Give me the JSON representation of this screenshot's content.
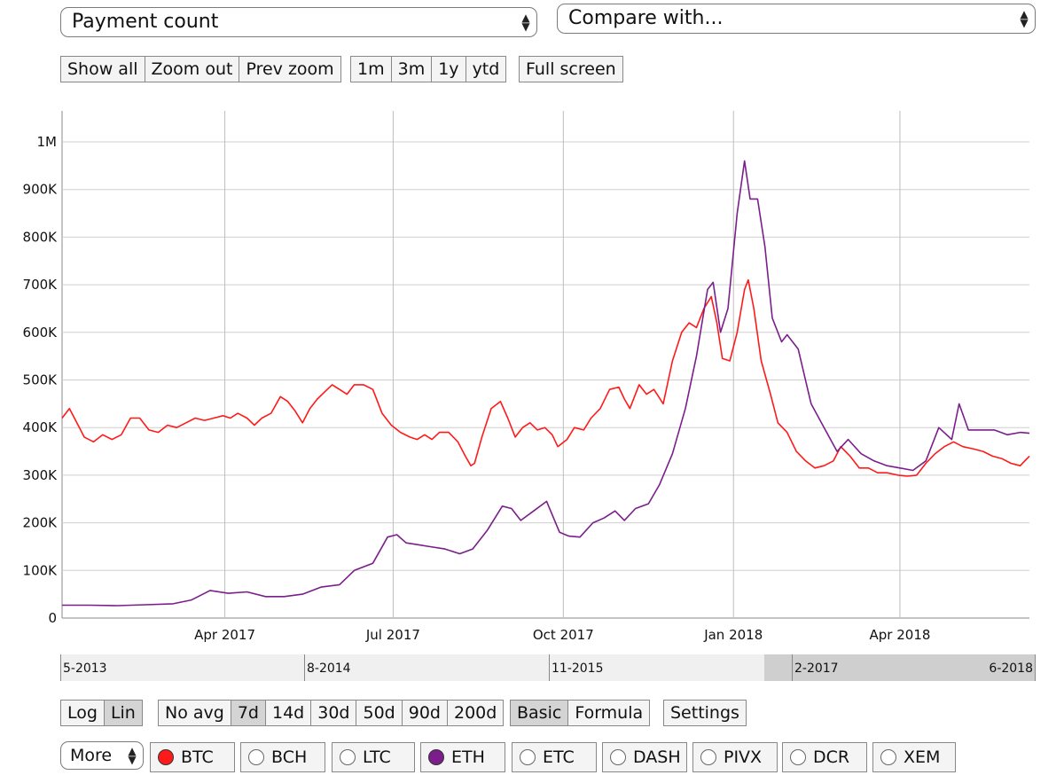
{
  "controls": {
    "metric_select": {
      "label": "Payment count"
    },
    "compare_select": {
      "label": "Compare with..."
    },
    "zoom_buttons": [
      "Show all",
      "Zoom out",
      "Prev zoom"
    ],
    "range_buttons": [
      "1m",
      "3m",
      "1y",
      "ytd"
    ],
    "fullscreen_label": "Full screen",
    "scale_buttons": [
      {
        "label": "Log",
        "active": false
      },
      {
        "label": "Lin",
        "active": true
      }
    ],
    "avg_buttons": [
      {
        "label": "No avg",
        "active": false
      },
      {
        "label": "7d",
        "active": true
      },
      {
        "label": "14d",
        "active": false
      },
      {
        "label": "30d",
        "active": false
      },
      {
        "label": "50d",
        "active": false
      },
      {
        "label": "90d",
        "active": false
      },
      {
        "label": "200d",
        "active": false
      }
    ],
    "mode_buttons": [
      {
        "label": "Basic",
        "active": true
      },
      {
        "label": "Formula",
        "active": false
      }
    ],
    "settings_label": "Settings",
    "more_select": {
      "label": "More"
    }
  },
  "coins": [
    {
      "label": "BTC",
      "selected": true,
      "color": "#ff1a1a"
    },
    {
      "label": "BCH",
      "selected": false,
      "color": ""
    },
    {
      "label": "LTC",
      "selected": false,
      "color": ""
    },
    {
      "label": "ETH",
      "selected": true,
      "color": "#7b1e8c"
    },
    {
      "label": "ETC",
      "selected": false,
      "color": ""
    },
    {
      "label": "DASH",
      "selected": false,
      "color": ""
    },
    {
      "label": "PIVX",
      "selected": false,
      "color": ""
    },
    {
      "label": "DCR",
      "selected": false,
      "color": ""
    },
    {
      "label": "XEM",
      "selected": false,
      "color": ""
    }
  ],
  "navigator": {
    "labels": [
      "5-2013",
      "8-2014",
      "11-2015",
      "2-2017",
      "6-2018"
    ],
    "selected_range": [
      "2-2017",
      "6-2018"
    ]
  },
  "chart_data": {
    "type": "line",
    "title": "",
    "xlabel": "",
    "ylabel": "",
    "x_range": [
      "2017-01-03",
      "2018-06-10"
    ],
    "ylim": [
      0,
      1000000
    ],
    "yticks": [
      0,
      100000,
      200000,
      300000,
      400000,
      500000,
      600000,
      700000,
      800000,
      900000,
      1000000
    ],
    "ytick_labels": [
      "0",
      "100K",
      "200K",
      "300K",
      "400K",
      "500K",
      "600K",
      "700K",
      "800K",
      "900K",
      "1M"
    ],
    "xticks": [
      "2017-04-01",
      "2017-07-01",
      "2017-10-01",
      "2018-01-01",
      "2018-04-01"
    ],
    "xtick_labels": [
      "Apr 2017",
      "Jul 2017",
      "Oct 2017",
      "Jan 2018",
      "Apr 2018"
    ],
    "grid": true,
    "legend": "none",
    "series": [
      {
        "name": "BTC",
        "color": "#ff1a1a",
        "points": [
          [
            "2017-01-03",
            420000
          ],
          [
            "2017-01-07",
            440000
          ],
          [
            "2017-01-11",
            410000
          ],
          [
            "2017-01-15",
            380000
          ],
          [
            "2017-01-20",
            370000
          ],
          [
            "2017-01-25",
            385000
          ],
          [
            "2017-01-30",
            375000
          ],
          [
            "2017-02-04",
            385000
          ],
          [
            "2017-02-09",
            420000
          ],
          [
            "2017-02-14",
            420000
          ],
          [
            "2017-02-19",
            395000
          ],
          [
            "2017-02-24",
            390000
          ],
          [
            "2017-03-01",
            405000
          ],
          [
            "2017-03-06",
            400000
          ],
          [
            "2017-03-11",
            410000
          ],
          [
            "2017-03-16",
            420000
          ],
          [
            "2017-03-21",
            415000
          ],
          [
            "2017-03-26",
            420000
          ],
          [
            "2017-03-31",
            425000
          ],
          [
            "2017-04-04",
            420000
          ],
          [
            "2017-04-08",
            430000
          ],
          [
            "2017-04-13",
            420000
          ],
          [
            "2017-04-17",
            405000
          ],
          [
            "2017-04-21",
            420000
          ],
          [
            "2017-04-26",
            430000
          ],
          [
            "2017-05-01",
            465000
          ],
          [
            "2017-05-05",
            455000
          ],
          [
            "2017-05-09",
            435000
          ],
          [
            "2017-05-13",
            410000
          ],
          [
            "2017-05-17",
            440000
          ],
          [
            "2017-05-21",
            460000
          ],
          [
            "2017-05-25",
            475000
          ],
          [
            "2017-05-29",
            490000
          ],
          [
            "2017-06-02",
            480000
          ],
          [
            "2017-06-06",
            470000
          ],
          [
            "2017-06-10",
            490000
          ],
          [
            "2017-06-15",
            490000
          ],
          [
            "2017-06-20",
            480000
          ],
          [
            "2017-06-25",
            430000
          ],
          [
            "2017-06-30",
            405000
          ],
          [
            "2017-07-05",
            390000
          ],
          [
            "2017-07-10",
            380000
          ],
          [
            "2017-07-14",
            375000
          ],
          [
            "2017-07-18",
            385000
          ],
          [
            "2017-07-22",
            375000
          ],
          [
            "2017-07-26",
            390000
          ],
          [
            "2017-07-31",
            390000
          ],
          [
            "2017-08-05",
            370000
          ],
          [
            "2017-08-09",
            340000
          ],
          [
            "2017-08-12",
            320000
          ],
          [
            "2017-08-14",
            325000
          ],
          [
            "2017-08-18",
            380000
          ],
          [
            "2017-08-23",
            440000
          ],
          [
            "2017-08-28",
            455000
          ],
          [
            "2017-09-01",
            420000
          ],
          [
            "2017-09-05",
            380000
          ],
          [
            "2017-09-09",
            400000
          ],
          [
            "2017-09-13",
            410000
          ],
          [
            "2017-09-17",
            395000
          ],
          [
            "2017-09-21",
            400000
          ],
          [
            "2017-09-25",
            385000
          ],
          [
            "2017-09-28",
            360000
          ],
          [
            "2017-10-03",
            375000
          ],
          [
            "2017-10-07",
            400000
          ],
          [
            "2017-10-12",
            395000
          ],
          [
            "2017-10-16",
            420000
          ],
          [
            "2017-10-21",
            440000
          ],
          [
            "2017-10-26",
            480000
          ],
          [
            "2017-10-31",
            485000
          ],
          [
            "2017-11-03",
            460000
          ],
          [
            "2017-11-06",
            440000
          ],
          [
            "2017-11-11",
            490000
          ],
          [
            "2017-11-15",
            470000
          ],
          [
            "2017-11-19",
            480000
          ],
          [
            "2017-11-24",
            450000
          ],
          [
            "2017-11-29",
            540000
          ],
          [
            "2017-12-04",
            600000
          ],
          [
            "2017-12-08",
            620000
          ],
          [
            "2017-12-12",
            610000
          ],
          [
            "2017-12-16",
            650000
          ],
          [
            "2017-12-20",
            675000
          ],
          [
            "2017-12-23",
            620000
          ],
          [
            "2017-12-26",
            545000
          ],
          [
            "2017-12-30",
            540000
          ],
          [
            "2018-01-03",
            600000
          ],
          [
            "2018-01-07",
            690000
          ],
          [
            "2018-01-09",
            710000
          ],
          [
            "2018-01-12",
            650000
          ],
          [
            "2018-01-16",
            540000
          ],
          [
            "2018-01-21",
            470000
          ],
          [
            "2018-01-25",
            410000
          ],
          [
            "2018-01-30",
            390000
          ],
          [
            "2018-02-04",
            350000
          ],
          [
            "2018-02-09",
            330000
          ],
          [
            "2018-02-14",
            315000
          ],
          [
            "2018-02-19",
            320000
          ],
          [
            "2018-02-24",
            330000
          ],
          [
            "2018-02-28",
            360000
          ],
          [
            "2018-03-05",
            340000
          ],
          [
            "2018-03-10",
            315000
          ],
          [
            "2018-03-15",
            315000
          ],
          [
            "2018-03-20",
            305000
          ],
          [
            "2018-03-25",
            305000
          ],
          [
            "2018-03-31",
            300000
          ],
          [
            "2018-04-05",
            298000
          ],
          [
            "2018-04-10",
            300000
          ],
          [
            "2018-04-15",
            325000
          ],
          [
            "2018-04-20",
            345000
          ],
          [
            "2018-04-25",
            360000
          ],
          [
            "2018-04-30",
            370000
          ],
          [
            "2018-05-05",
            360000
          ],
          [
            "2018-05-11",
            355000
          ],
          [
            "2018-05-16",
            350000
          ],
          [
            "2018-05-21",
            340000
          ],
          [
            "2018-05-26",
            335000
          ],
          [
            "2018-05-31",
            325000
          ],
          [
            "2018-06-05",
            320000
          ],
          [
            "2018-06-10",
            340000
          ]
        ]
      },
      {
        "name": "ETH",
        "color": "#7b1e8c",
        "points": [
          [
            "2017-01-03",
            27000
          ],
          [
            "2017-01-18",
            27000
          ],
          [
            "2017-02-02",
            26000
          ],
          [
            "2017-02-17",
            28000
          ],
          [
            "2017-03-04",
            30000
          ],
          [
            "2017-03-14",
            38000
          ],
          [
            "2017-03-24",
            58000
          ],
          [
            "2017-04-03",
            52000
          ],
          [
            "2017-04-13",
            55000
          ],
          [
            "2017-04-23",
            45000
          ],
          [
            "2017-05-03",
            45000
          ],
          [
            "2017-05-13",
            50000
          ],
          [
            "2017-05-23",
            65000
          ],
          [
            "2017-06-02",
            70000
          ],
          [
            "2017-06-10",
            100000
          ],
          [
            "2017-06-20",
            115000
          ],
          [
            "2017-06-28",
            170000
          ],
          [
            "2017-07-03",
            175000
          ],
          [
            "2017-07-08",
            158000
          ],
          [
            "2017-07-13",
            155000
          ],
          [
            "2017-07-21",
            150000
          ],
          [
            "2017-07-29",
            145000
          ],
          [
            "2017-08-06",
            135000
          ],
          [
            "2017-08-13",
            145000
          ],
          [
            "2017-08-21",
            185000
          ],
          [
            "2017-08-29",
            235000
          ],
          [
            "2017-09-03",
            230000
          ],
          [
            "2017-09-08",
            205000
          ],
          [
            "2017-09-15",
            225000
          ],
          [
            "2017-09-22",
            245000
          ],
          [
            "2017-09-29",
            180000
          ],
          [
            "2017-10-04",
            172000
          ],
          [
            "2017-10-10",
            170000
          ],
          [
            "2017-10-17",
            200000
          ],
          [
            "2017-10-23",
            210000
          ],
          [
            "2017-10-29",
            225000
          ],
          [
            "2017-11-03",
            205000
          ],
          [
            "2017-11-09",
            230000
          ],
          [
            "2017-11-16",
            240000
          ],
          [
            "2017-11-22",
            280000
          ],
          [
            "2017-11-29",
            345000
          ],
          [
            "2017-12-06",
            440000
          ],
          [
            "2017-12-12",
            550000
          ],
          [
            "2017-12-18",
            690000
          ],
          [
            "2017-12-21",
            705000
          ],
          [
            "2017-12-25",
            600000
          ],
          [
            "2017-12-29",
            650000
          ],
          [
            "2018-01-03",
            850000
          ],
          [
            "2018-01-07",
            960000
          ],
          [
            "2018-01-10",
            880000
          ],
          [
            "2018-01-14",
            880000
          ],
          [
            "2018-01-18",
            780000
          ],
          [
            "2018-01-22",
            630000
          ],
          [
            "2018-01-27",
            580000
          ],
          [
            "2018-01-30",
            595000
          ],
          [
            "2018-02-05",
            565000
          ],
          [
            "2018-02-12",
            450000
          ],
          [
            "2018-02-19",
            400000
          ],
          [
            "2018-02-26",
            350000
          ],
          [
            "2018-03-04",
            375000
          ],
          [
            "2018-03-11",
            345000
          ],
          [
            "2018-03-18",
            330000
          ],
          [
            "2018-03-25",
            320000
          ],
          [
            "2018-04-01",
            315000
          ],
          [
            "2018-04-08",
            310000
          ],
          [
            "2018-04-15",
            330000
          ],
          [
            "2018-04-22",
            400000
          ],
          [
            "2018-04-29",
            375000
          ],
          [
            "2018-05-03",
            450000
          ],
          [
            "2018-05-08",
            395000
          ],
          [
            "2018-05-15",
            395000
          ],
          [
            "2018-05-22",
            395000
          ],
          [
            "2018-05-29",
            385000
          ],
          [
            "2018-06-05",
            390000
          ],
          [
            "2018-06-10",
            388000
          ]
        ]
      }
    ]
  }
}
